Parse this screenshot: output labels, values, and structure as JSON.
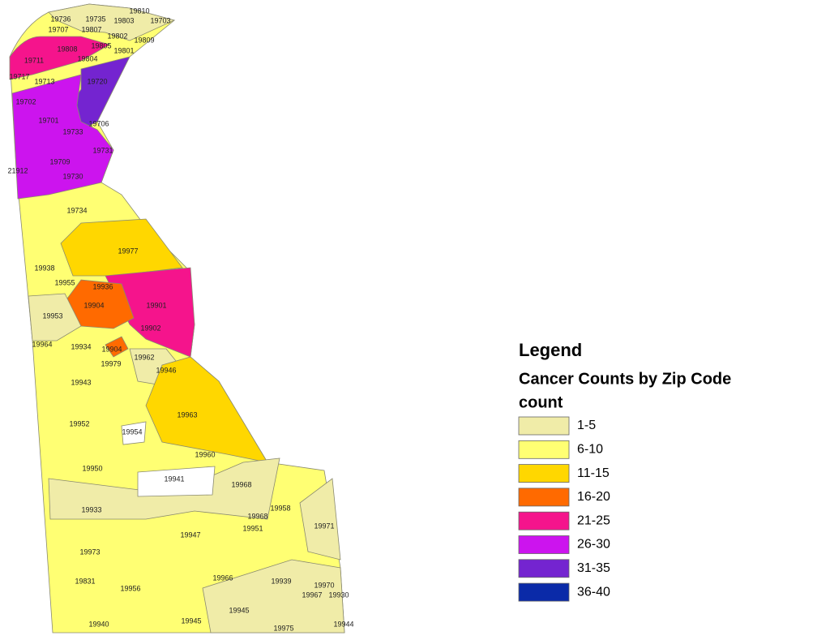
{
  "map": {
    "zips": [
      "19736",
      "19735",
      "19803",
      "19810",
      "19703",
      "19707",
      "19807",
      "19802",
      "19809",
      "19805",
      "19801",
      "19808",
      "19804",
      "19711",
      "19717",
      "19713",
      "19720",
      "19702",
      "19701",
      "19706",
      "19733",
      "19731",
      "19709",
      "21912",
      "19730",
      "19734",
      "19977",
      "19938",
      "19936",
      "19955",
      "19904",
      "19901",
      "19953",
      "19902",
      "19964",
      "19934",
      "19904",
      "19979",
      "19962",
      "19946",
      "19943",
      "19963",
      "19952",
      "19954",
      "19960",
      "19950",
      "19941",
      "19968",
      "19933",
      "19958",
      "19968",
      "19951",
      "19971",
      "19947",
      "19973",
      "19966",
      "19939",
      "19831",
      "19956",
      "19970",
      "19967",
      "19930",
      "19945",
      "19940",
      "19945",
      "19975",
      "19944"
    ],
    "legend": {
      "title": "Legend",
      "layer": "Cancer Counts by Zip Code",
      "field": "count",
      "classes": [
        {
          "label": "1-5",
          "color": "#f0eca8"
        },
        {
          "label": "6-10",
          "color": "#ffff73"
        },
        {
          "label": "11-15",
          "color": "#ffd700"
        },
        {
          "label": "16-20",
          "color": "#ff6a00"
        },
        {
          "label": "21-25",
          "color": "#f5148c"
        },
        {
          "label": "26-30",
          "color": "#cc14ee"
        },
        {
          "label": "31-35",
          "color": "#7424d0"
        },
        {
          "label": "36-40",
          "color": "#0a2aa8"
        }
      ]
    }
  }
}
